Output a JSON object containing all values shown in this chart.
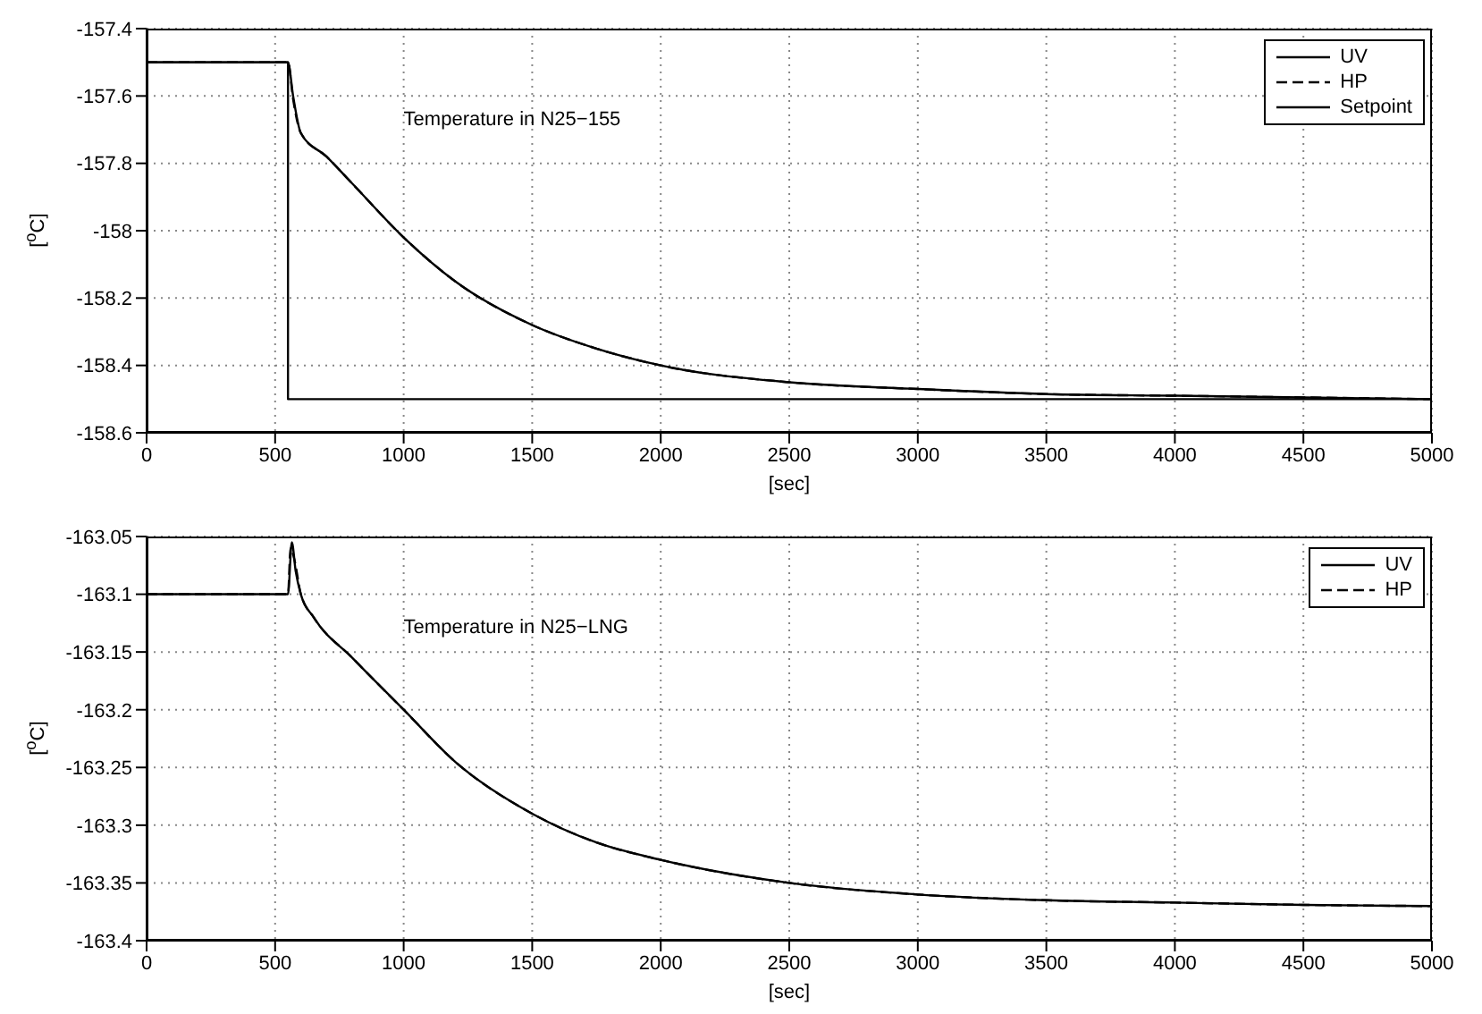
{
  "chart_data": [
    {
      "type": "line",
      "xlabel": "[sec]",
      "ylabel": "[$^{o}$C]",
      "annotations": [
        "Temperature in N25−155"
      ],
      "xlim": [
        0,
        5000
      ],
      "xticks": [
        0,
        500,
        1000,
        1500,
        2000,
        2500,
        3000,
        3500,
        4000,
        4500,
        5000
      ],
      "ylim": [
        -158.6,
        -157.4
      ],
      "yticks": [
        -158.6,
        -158.4,
        -158.2,
        -158,
        -157.8,
        -157.6,
        -157.4
      ],
      "grid": true,
      "legend": "top right",
      "series": [
        {
          "name": "UV",
          "color": "#000000",
          "line_style": "solid",
          "x": [
            0,
            550,
            570,
            600,
            700,
            800,
            1000,
            1200,
            1500,
            1750,
            2000,
            2500,
            3000,
            3500,
            4000,
            4500,
            5000
          ],
          "values": [
            -157.5,
            -157.5,
            -157.6,
            -157.71,
            -157.78,
            -157.86,
            -158.02,
            -158.15,
            -158.28,
            -158.35,
            -158.4,
            -158.45,
            -158.47,
            -158.485,
            -158.49,
            -158.495,
            -158.5
          ]
        },
        {
          "name": "HP",
          "color": "#000000",
          "line_style": "dashed",
          "x": [
            0,
            550,
            570,
            600,
            700,
            800,
            1000,
            1200,
            1500,
            1750,
            2000,
            2500,
            3000,
            3500,
            4000,
            4500,
            5000
          ],
          "values": [
            -157.5,
            -157.5,
            -157.61,
            -157.71,
            -157.78,
            -157.86,
            -158.02,
            -158.15,
            -158.28,
            -158.35,
            -158.4,
            -158.45,
            -158.47,
            -158.485,
            -158.49,
            -158.495,
            -158.5
          ]
        },
        {
          "name": "Setpoint",
          "color": "#000000",
          "line_style": "solid",
          "x": [
            0,
            550,
            550,
            5000
          ],
          "values": [
            -157.5,
            -157.5,
            -158.5,
            -158.5
          ]
        }
      ]
    },
    {
      "type": "line",
      "xlabel": "[sec]",
      "ylabel": "[$^{o}$C]",
      "annotations": [
        "Temperature in N25−LNG"
      ],
      "xlim": [
        0,
        5000
      ],
      "xticks": [
        0,
        500,
        1000,
        1500,
        2000,
        2500,
        3000,
        3500,
        4000,
        4500,
        5000
      ],
      "ylim": [
        -163.4,
        -163.05
      ],
      "yticks": [
        -163.4,
        -163.35,
        -163.3,
        -163.25,
        -163.2,
        -163.15,
        -163.1,
        -163.05
      ],
      "grid": true,
      "legend": "top right",
      "series": [
        {
          "name": "UV",
          "color": "#000000",
          "line_style": "solid",
          "x": [
            0,
            550,
            565,
            580,
            600,
            650,
            800,
            1000,
            1200,
            1500,
            1750,
            2000,
            2500,
            3000,
            3500,
            4000,
            4500,
            5000
          ],
          "values": [
            -163.1,
            -163.1,
            -163.055,
            -163.08,
            -163.1,
            -163.12,
            -163.155,
            -163.2,
            -163.245,
            -163.29,
            -163.315,
            -163.33,
            -163.35,
            -163.36,
            -163.365,
            -163.367,
            -163.369,
            -163.37
          ]
        },
        {
          "name": "HP",
          "color": "#000000",
          "line_style": "dashed",
          "x": [
            0,
            550,
            560,
            575,
            600,
            650,
            800,
            1000,
            1200,
            1500,
            1750,
            2000,
            2500,
            3000,
            3500,
            4000,
            4500,
            5000
          ],
          "values": [
            -163.1,
            -163.1,
            -163.06,
            -163.07,
            -163.1,
            -163.12,
            -163.155,
            -163.2,
            -163.245,
            -163.29,
            -163.315,
            -163.33,
            -163.35,
            -163.36,
            -163.365,
            -163.367,
            -163.369,
            -163.37
          ]
        }
      ]
    }
  ]
}
